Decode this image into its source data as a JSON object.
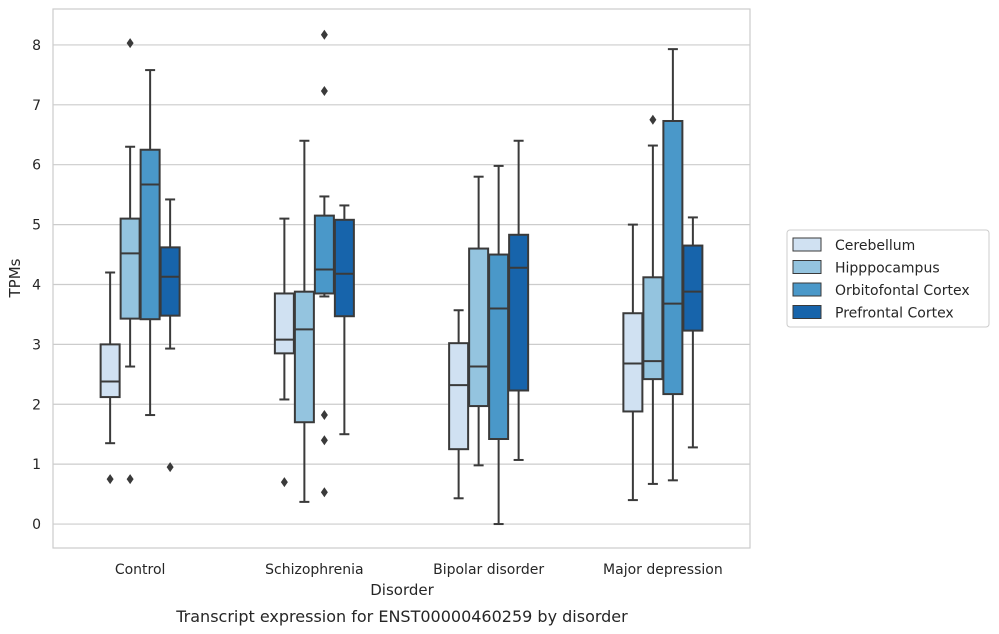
{
  "caption": "Transcript expression for ENST00000460259 by disorder",
  "chart_data": {
    "type": "box",
    "xlabel": "Disorder",
    "ylabel": "TPMs",
    "ylim": [
      -0.4,
      8.6
    ],
    "yticks": [
      0,
      1,
      2,
      3,
      4,
      5,
      6,
      7,
      8
    ],
    "grid": "horizontal",
    "legend_position": "right",
    "categories": [
      "Control",
      "Schizophrenia",
      "Bipolar disorder",
      "Major depression"
    ],
    "series": [
      {
        "name": "Cerebellum",
        "color": "#d0e1f2",
        "boxes": [
          {
            "whisker_low": 1.35,
            "q1": 2.12,
            "median": 2.38,
            "q3": 3.0,
            "whisker_high": 4.2,
            "outliers": [
              0.75
            ]
          },
          {
            "whisker_low": 2.08,
            "q1": 2.85,
            "median": 3.08,
            "q3": 3.85,
            "whisker_high": 5.1,
            "outliers": [
              0.7
            ]
          },
          {
            "whisker_low": 0.43,
            "q1": 1.25,
            "median": 2.32,
            "q3": 3.02,
            "whisker_high": 3.57,
            "outliers": []
          },
          {
            "whisker_low": 0.4,
            "q1": 1.88,
            "median": 2.68,
            "q3": 3.52,
            "whisker_high": 5.0,
            "outliers": []
          }
        ]
      },
      {
        "name": "Hipppocampus",
        "color": "#94c4df",
        "boxes": [
          {
            "whisker_low": 2.63,
            "q1": 3.43,
            "median": 4.52,
            "q3": 5.1,
            "whisker_high": 6.3,
            "outliers": [
              8.03,
              0.75
            ]
          },
          {
            "whisker_low": 0.37,
            "q1": 1.7,
            "median": 3.25,
            "q3": 3.88,
            "whisker_high": 6.4,
            "outliers": []
          },
          {
            "whisker_low": 0.98,
            "q1": 1.97,
            "median": 2.63,
            "q3": 4.6,
            "whisker_high": 5.8,
            "outliers": []
          },
          {
            "whisker_low": 0.67,
            "q1": 2.42,
            "median": 2.72,
            "q3": 4.12,
            "whisker_high": 6.32,
            "outliers": [
              6.75
            ]
          }
        ]
      },
      {
        "name": "Orbitofontal Cortex",
        "color": "#4a98c9",
        "boxes": [
          {
            "whisker_low": 1.82,
            "q1": 3.42,
            "median": 5.67,
            "q3": 6.25,
            "whisker_high": 7.58,
            "outliers": []
          },
          {
            "whisker_low": 3.8,
            "q1": 3.85,
            "median": 4.25,
            "q3": 5.15,
            "whisker_high": 5.47,
            "outliers": [
              8.17,
              7.23,
              1.82,
              1.4,
              0.53
            ]
          },
          {
            "whisker_low": 0.0,
            "q1": 1.42,
            "median": 3.6,
            "q3": 4.5,
            "whisker_high": 5.98,
            "outliers": []
          },
          {
            "whisker_low": 0.73,
            "q1": 2.17,
            "median": 3.68,
            "q3": 6.73,
            "whisker_high": 7.93,
            "outliers": []
          }
        ]
      },
      {
        "name": "Prefrontal Cortex",
        "color": "#1764ab",
        "boxes": [
          {
            "whisker_low": 2.93,
            "q1": 3.48,
            "median": 4.13,
            "q3": 4.62,
            "whisker_high": 5.42,
            "outliers": [
              0.95
            ]
          },
          {
            "whisker_low": 1.5,
            "q1": 3.47,
            "median": 4.18,
            "q3": 5.08,
            "whisker_high": 5.32,
            "outliers": []
          },
          {
            "whisker_low": 1.07,
            "q1": 2.23,
            "median": 4.28,
            "q3": 4.83,
            "whisker_high": 6.4,
            "outliers": []
          },
          {
            "whisker_low": 1.28,
            "q1": 3.23,
            "median": 3.88,
            "q3": 4.65,
            "whisker_high": 5.12,
            "outliers": []
          }
        ]
      }
    ]
  }
}
